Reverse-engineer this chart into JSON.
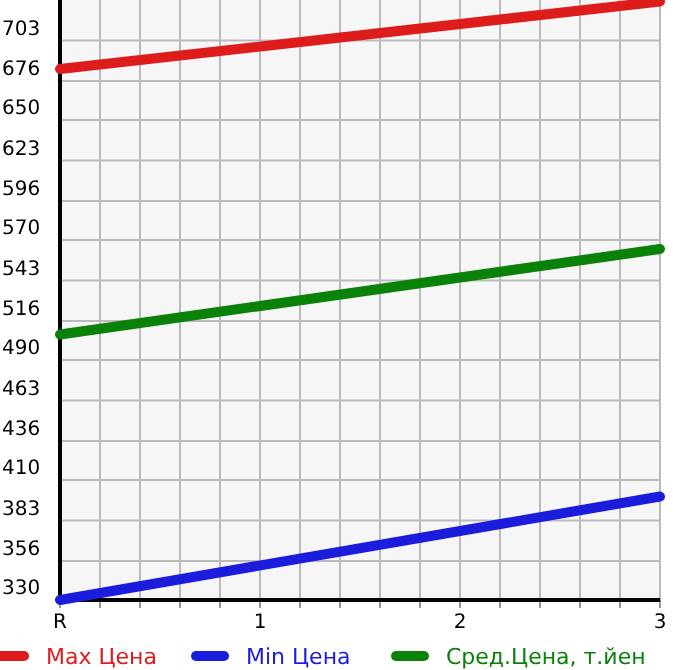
{
  "chart_data": {
    "type": "line",
    "x": [
      0,
      3
    ],
    "xlim": [
      0,
      3
    ],
    "xticks": [
      {
        "value": 0,
        "label": "R"
      },
      {
        "value": 0.2,
        "label": null
      },
      {
        "value": 0.4,
        "label": null
      },
      {
        "value": 0.6,
        "label": null
      },
      {
        "value": 0.8,
        "label": null
      },
      1,
      {
        "value": 1.2,
        "label": null
      },
      {
        "value": 1.4,
        "label": null
      },
      {
        "value": 1.6,
        "label": null
      },
      {
        "value": 1.8,
        "label": null
      },
      2,
      {
        "value": 2.2,
        "label": null
      },
      {
        "value": 2.4,
        "label": null
      },
      {
        "value": 2.6,
        "label": null
      },
      {
        "value": 2.8,
        "label": null
      },
      3
    ],
    "ylim": [
      330,
      730
    ],
    "yticks": [
      330,
      356,
      383,
      410,
      436,
      463,
      490,
      516,
      543,
      570,
      596,
      623,
      650,
      676,
      703
    ],
    "grid": true,
    "legend": "bottom",
    "marker": "none",
    "line_style": "solid",
    "series": [
      {
        "name": "Max Цена",
        "color": "#dd1c1c",
        "values": [
          684,
          729
        ]
      },
      {
        "name": "Min Цена",
        "color": "#1c1cdd",
        "values": [
          330,
          399
        ]
      },
      {
        "name": "Сред.Цена, т.йен",
        "color": "#0a820a",
        "values": [
          507,
          564
        ]
      }
    ]
  }
}
